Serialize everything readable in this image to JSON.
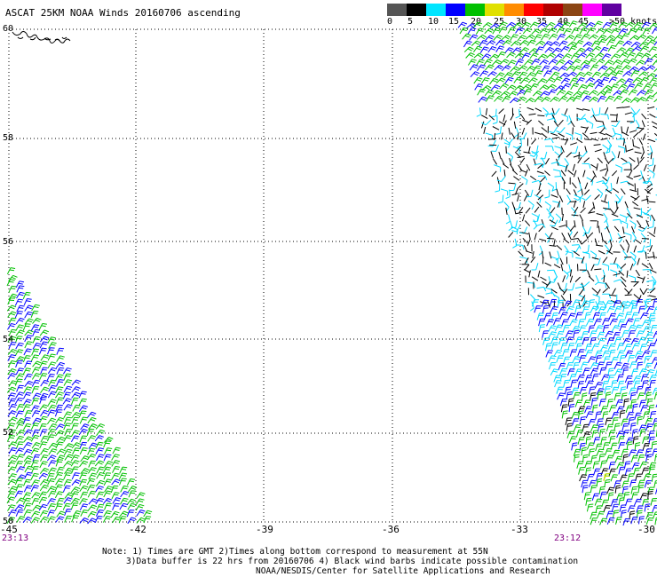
{
  "title": "ASCAT 25KM NOAA Winds 20160706 ascending",
  "scale": {
    "labels": [
      "0",
      "5",
      "10",
      "15",
      "20",
      "25",
      "30",
      "35",
      "40",
      "45",
      ">50 knots"
    ],
    "colors": [
      "#555555",
      "#000000",
      "#00e5ff",
      "#0000ff",
      "#00c000",
      "#e0e000",
      "#ff8c00",
      "#ff0000",
      "#b00000",
      "#8b4513",
      "#ff00ff",
      "#6000a0"
    ]
  },
  "map": {
    "lat_labels": [
      "60",
      "58",
      "56",
      "54",
      "52",
      "50"
    ],
    "lon_labels": [
      "-45",
      "-42",
      "-39",
      "-36",
      "-33",
      "-30"
    ],
    "time_labels": [
      "23:13",
      "23:12"
    ]
  },
  "notes": {
    "line1": "Note: 1) Times are GMT 2)Times along bottom correspond to measurement at 55N",
    "line2": "3)Data buffer is 22 hrs from 20160706 4) Black wind barbs indicate possible contamination",
    "line3": "NOAA/NESDIS/Center for Satellite Applications and Research"
  }
}
